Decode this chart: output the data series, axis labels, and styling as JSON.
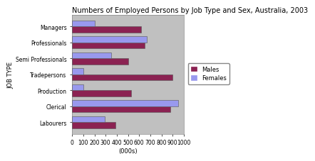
{
  "title": "Numbers of Employed Persons by Job Type and Sex, Australia, 2003",
  "categories": [
    "Managers",
    "Professionals",
    "Semi Professionals",
    "Tradepersons",
    "Production",
    "Clerical",
    "Labourers"
  ],
  "males": [
    620,
    650,
    500,
    900,
    530,
    880,
    390
  ],
  "females": [
    200,
    670,
    350,
    100,
    100,
    950,
    290
  ],
  "male_color": "#8B2252",
  "female_color": "#9999EE",
  "xlabel": "(000s)",
  "ylabel": "JOB TYPE",
  "xlim": [
    0,
    1000
  ],
  "xticks": [
    0,
    100,
    200,
    300,
    400,
    500,
    600,
    700,
    800,
    900,
    1000
  ],
  "xtick_labels": [
    "0",
    "100",
    "200",
    "300",
    "400",
    "500",
    "600",
    "700",
    "800",
    "900",
    "1000"
  ],
  "legend_labels": [
    "Males",
    "Females"
  ],
  "plot_bg_color": "#C0C0C0",
  "fig_bg_color": "#FFFFFF",
  "title_fontsize": 7,
  "axis_label_fontsize": 6,
  "tick_fontsize": 5.5,
  "bar_height": 0.38,
  "legend_fontsize": 6
}
